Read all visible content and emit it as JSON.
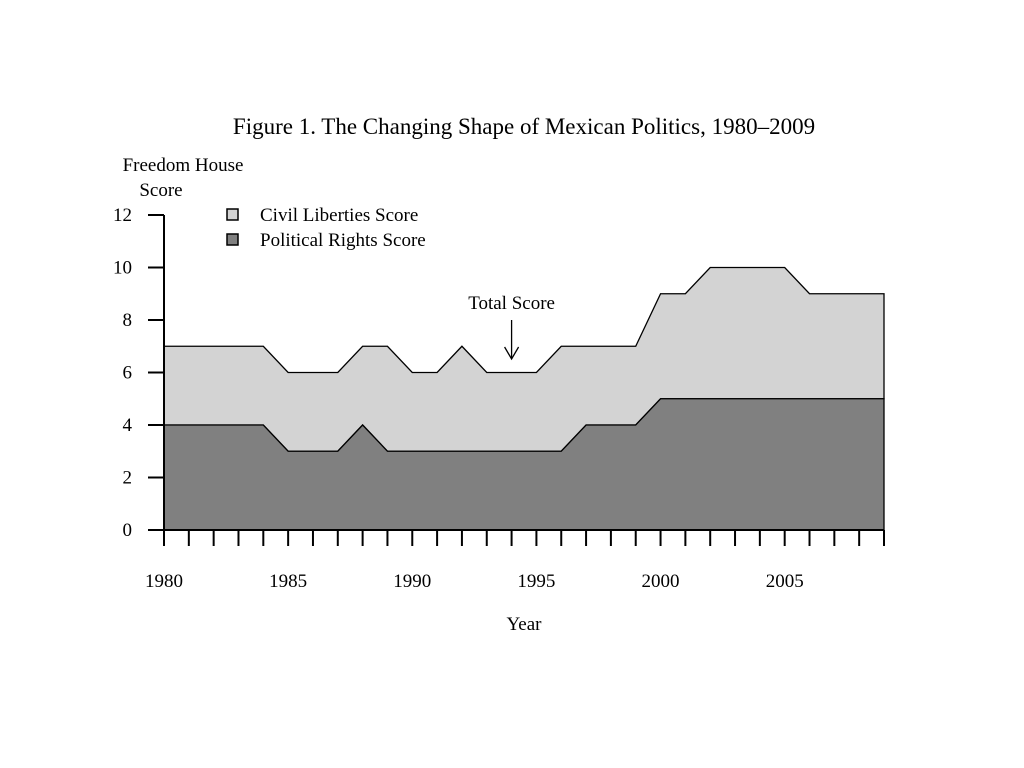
{
  "chart_data": {
    "type": "area",
    "title": "Figure 1. The Changing Shape of Mexican Politics, 1980–2009",
    "ylabel_line1": "Freedom House",
    "ylabel_line2": "Score",
    "xlabel": "Year",
    "ylim": [
      0,
      12
    ],
    "xlim": [
      1980,
      2009
    ],
    "y_ticks": [
      "0",
      "2",
      "4",
      "6",
      "8",
      "10",
      "12"
    ],
    "x_tick_labels": [
      "1980",
      "1985",
      "1990",
      "1995",
      "2000",
      "2005"
    ],
    "annotation": "Total Score",
    "annotation_year": 1994,
    "stacked": true,
    "grid": false,
    "legend_position": "top-left",
    "x": [
      1980,
      1981,
      1982,
      1983,
      1984,
      1985,
      1986,
      1987,
      1988,
      1989,
      1990,
      1991,
      1992,
      1993,
      1994,
      1995,
      1996,
      1997,
      1998,
      1999,
      2000,
      2001,
      2002,
      2003,
      2004,
      2005,
      2006,
      2007,
      2008,
      2009
    ],
    "series": [
      {
        "name": "Political Rights Score",
        "color": "#808080",
        "values": [
          4,
          4,
          4,
          4,
          4,
          3,
          3,
          3,
          4,
          3,
          3,
          3,
          3,
          3,
          3,
          3,
          3,
          4,
          4,
          4,
          5,
          5,
          5,
          5,
          5,
          5,
          5,
          5,
          5,
          5
        ]
      },
      {
        "name": "Civil Liberties Score",
        "color": "#d3d3d3",
        "values": [
          3,
          3,
          3,
          3,
          3,
          3,
          3,
          3,
          3,
          4,
          3,
          3,
          4,
          3,
          3,
          3,
          4,
          3,
          3,
          3,
          4,
          4,
          5,
          5,
          5,
          5,
          4,
          4,
          4,
          4
        ]
      }
    ]
  }
}
